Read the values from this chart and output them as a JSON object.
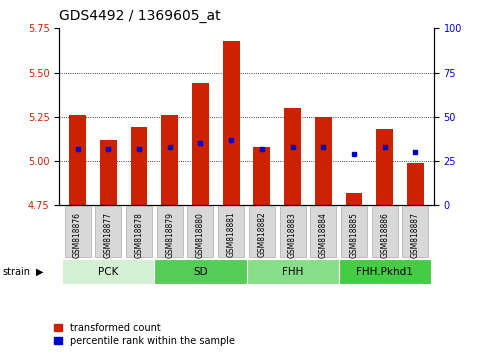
{
  "title": "GDS4492 / 1369605_at",
  "samples": [
    "GSM818876",
    "GSM818877",
    "GSM818878",
    "GSM818879",
    "GSM818880",
    "GSM818881",
    "GSM818882",
    "GSM818883",
    "GSM818884",
    "GSM818885",
    "GSM818886",
    "GSM818887"
  ],
  "bar_values": [
    5.26,
    5.12,
    5.19,
    5.26,
    5.44,
    5.68,
    5.08,
    5.3,
    5.25,
    4.82,
    5.18,
    4.99
  ],
  "bar_base": 4.75,
  "blue_dot_values": [
    5.07,
    5.07,
    5.07,
    5.08,
    5.1,
    5.12,
    5.07,
    5.08,
    5.08,
    5.04,
    5.08,
    5.05
  ],
  "groups": [
    {
      "label": "PCK",
      "start": 0,
      "end": 2,
      "color": "#d4f0d4"
    },
    {
      "label": "SD",
      "start": 3,
      "end": 5,
      "color": "#55cc55"
    },
    {
      "label": "FHH",
      "start": 6,
      "end": 8,
      "color": "#88dd88"
    },
    {
      "label": "FHH.Pkhd1",
      "start": 9,
      "end": 11,
      "color": "#44cc44"
    }
  ],
  "ylim_left": [
    4.75,
    5.75
  ],
  "ylim_right": [
    0,
    100
  ],
  "yticks_left": [
    4.75,
    5.0,
    5.25,
    5.5,
    5.75
  ],
  "yticks_right": [
    0,
    25,
    50,
    75,
    100
  ],
  "bar_color": "#cc2200",
  "dot_color": "#0000cc",
  "bg_color": "#ffffff",
  "plot_bg": "#ffffff",
  "title_fontsize": 10,
  "tick_fontsize": 7,
  "bar_width": 0.55,
  "n_bars": 12
}
